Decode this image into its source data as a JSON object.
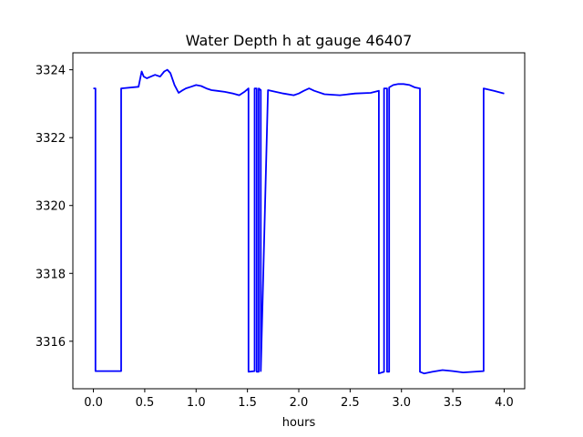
{
  "chart_data": {
    "type": "line",
    "title": "Water Depth h at gauge 46407",
    "xlabel": "hours",
    "ylabel": "",
    "xlim": [
      -0.2,
      4.2
    ],
    "ylim": [
      3314.6,
      3324.5
    ],
    "xticks": [
      0.0,
      0.5,
      1.0,
      1.5,
      2.0,
      2.5,
      3.0,
      3.5,
      4.0
    ],
    "xtick_labels": [
      "0.0",
      "0.5",
      "1.0",
      "1.5",
      "2.0",
      "2.5",
      "3.0",
      "3.5",
      "4.0"
    ],
    "yticks": [
      3316,
      3318,
      3320,
      3322,
      3324
    ],
    "ytick_labels": [
      "3316",
      "3318",
      "3320",
      "3322",
      "3324"
    ],
    "grid": false,
    "series": [
      {
        "color": "#0000ff",
        "x": [
          0.0,
          0.02,
          0.02,
          0.27,
          0.27,
          0.44,
          0.47,
          0.49,
          0.52,
          0.56,
          0.6,
          0.65,
          0.69,
          0.72,
          0.75,
          0.79,
          0.83,
          0.86,
          0.9,
          0.95,
          1.0,
          1.05,
          1.1,
          1.15,
          1.2,
          1.28,
          1.36,
          1.42,
          1.47,
          1.51,
          1.51,
          1.57,
          1.57,
          1.59,
          1.59,
          1.61,
          1.61,
          1.63,
          1.63,
          1.7,
          1.85,
          1.95,
          2.0,
          2.05,
          2.1,
          2.15,
          2.25,
          2.4,
          2.55,
          2.7,
          2.78,
          2.78,
          2.83,
          2.83,
          2.86,
          2.86,
          2.88,
          2.88,
          2.92,
          2.97,
          3.02,
          3.08,
          3.13,
          3.18,
          3.18,
          3.22,
          3.3,
          3.4,
          3.5,
          3.6,
          3.7,
          3.8,
          3.8,
          3.9,
          4.0
        ],
        "y": [
          3323.45,
          3323.45,
          3315.12,
          3315.12,
          3323.45,
          3323.5,
          3323.95,
          3323.8,
          3323.75,
          3323.8,
          3323.85,
          3323.8,
          3323.95,
          3324.0,
          3323.9,
          3323.55,
          3323.32,
          3323.38,
          3323.45,
          3323.5,
          3323.55,
          3323.52,
          3323.45,
          3323.4,
          3323.38,
          3323.35,
          3323.3,
          3323.25,
          3323.35,
          3323.45,
          3315.1,
          3315.12,
          3323.45,
          3323.45,
          3315.1,
          3315.1,
          3323.45,
          3323.4,
          3315.12,
          3323.4,
          3323.3,
          3323.25,
          3323.3,
          3323.38,
          3323.45,
          3323.38,
          3323.28,
          3323.25,
          3323.3,
          3323.32,
          3323.38,
          3315.05,
          3315.1,
          3323.45,
          3323.45,
          3315.1,
          3315.1,
          3323.48,
          3323.55,
          3323.58,
          3323.58,
          3323.55,
          3323.48,
          3323.45,
          3315.1,
          3315.05,
          3315.1,
          3315.15,
          3315.12,
          3315.08,
          3315.1,
          3315.12,
          3323.45,
          3323.38,
          3323.3
        ]
      }
    ]
  }
}
